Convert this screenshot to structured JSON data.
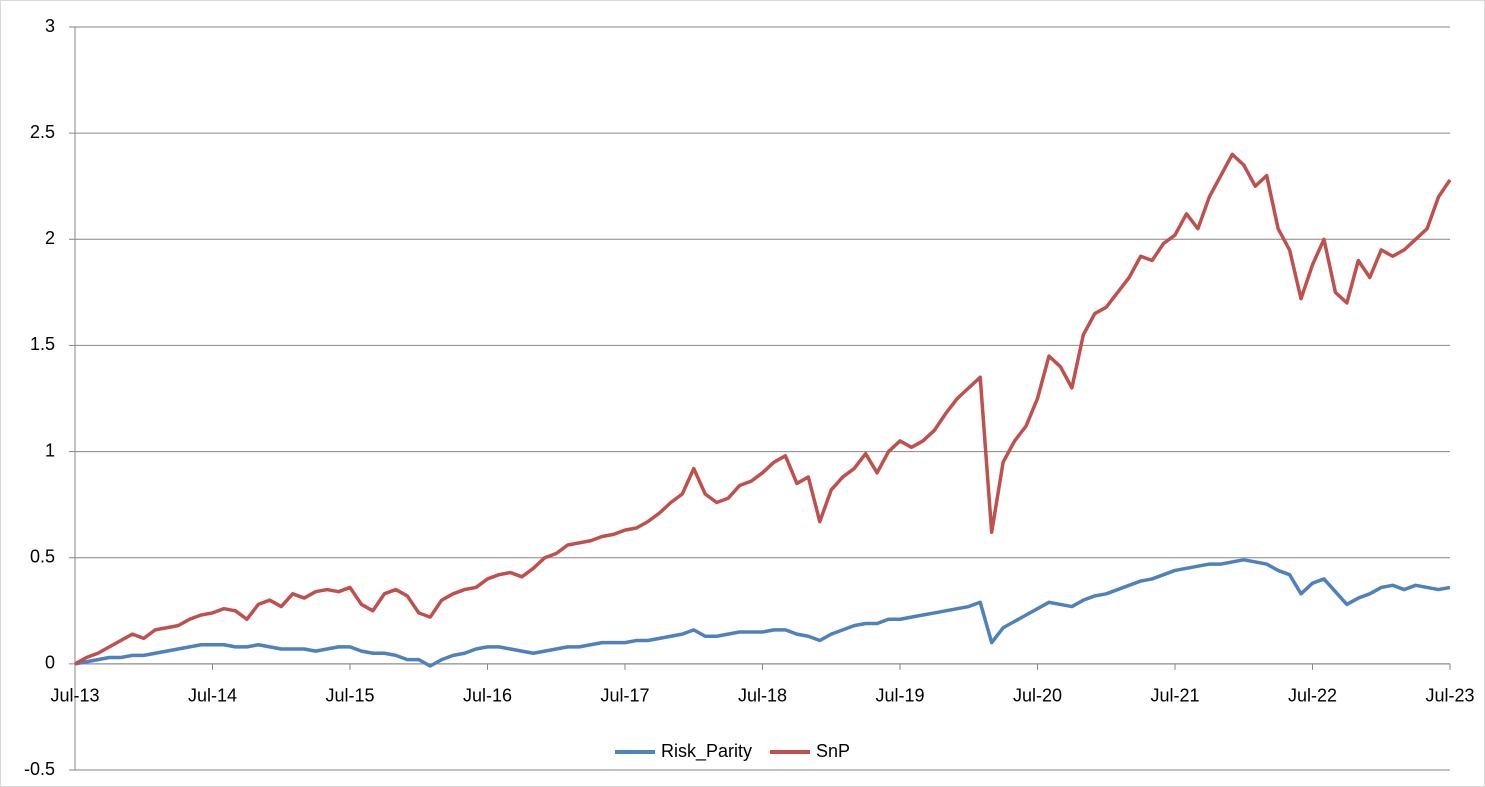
{
  "chart_data": {
    "type": "line",
    "categories": [
      "Jul-13",
      null,
      null,
      null,
      null,
      null,
      null,
      null,
      null,
      null,
      null,
      null,
      "Jul-14",
      null,
      null,
      null,
      null,
      null,
      null,
      null,
      null,
      null,
      null,
      null,
      "Jul-15",
      null,
      null,
      null,
      null,
      null,
      null,
      null,
      null,
      null,
      null,
      null,
      "Jul-16",
      null,
      null,
      null,
      null,
      null,
      null,
      null,
      null,
      null,
      null,
      null,
      "Jul-17",
      null,
      null,
      null,
      null,
      null,
      null,
      null,
      null,
      null,
      null,
      null,
      "Jul-18",
      null,
      null,
      null,
      null,
      null,
      null,
      null,
      null,
      null,
      null,
      null,
      "Jul-19",
      null,
      null,
      null,
      null,
      null,
      null,
      null,
      null,
      null,
      null,
      null,
      "Jul-20",
      null,
      null,
      null,
      null,
      null,
      null,
      null,
      null,
      null,
      null,
      null,
      "Jul-21",
      null,
      null,
      null,
      null,
      null,
      null,
      null,
      null,
      null,
      null,
      null,
      "Jul-22",
      null,
      null,
      null,
      null,
      null,
      null,
      null,
      null,
      null,
      null,
      null,
      "Jul-23"
    ],
    "series": [
      {
        "name": "Risk_Parity",
        "color": "#4f81bd",
        "values": [
          0,
          0.01,
          0.02,
          0.03,
          0.03,
          0.04,
          0.04,
          0.05,
          0.06,
          0.07,
          0.08,
          0.09,
          0.09,
          0.09,
          0.08,
          0.08,
          0.09,
          0.08,
          0.07,
          0.07,
          0.07,
          0.06,
          0.07,
          0.08,
          0.08,
          0.06,
          0.05,
          0.05,
          0.04,
          0.02,
          0.02,
          -0.01,
          0.02,
          0.04,
          0.05,
          0.07,
          0.08,
          0.08,
          0.07,
          0.06,
          0.05,
          0.06,
          0.07,
          0.08,
          0.08,
          0.09,
          0.1,
          0.1,
          0.1,
          0.11,
          0.11,
          0.12,
          0.13,
          0.14,
          0.16,
          0.13,
          0.13,
          0.14,
          0.15,
          0.15,
          0.15,
          0.16,
          0.16,
          0.14,
          0.13,
          0.11,
          0.14,
          0.16,
          0.18,
          0.19,
          0.19,
          0.21,
          0.21,
          0.22,
          0.23,
          0.24,
          0.25,
          0.26,
          0.27,
          0.29,
          0.1,
          0.17,
          0.2,
          0.23,
          0.26,
          0.29,
          0.28,
          0.27,
          0.3,
          0.32,
          0.33,
          0.35,
          0.37,
          0.39,
          0.4,
          0.42,
          0.44,
          0.45,
          0.46,
          0.47,
          0.47,
          0.48,
          0.49,
          0.48,
          0.47,
          0.44,
          0.42,
          0.33,
          0.38,
          0.4,
          0.34,
          0.28,
          0.31,
          0.33,
          0.36,
          0.37,
          0.35,
          0.37,
          0.36,
          0.35,
          0.36
        ]
      },
      {
        "name": "SnP",
        "color": "#c0504d",
        "values": [
          0,
          0.03,
          0.05,
          0.08,
          0.11,
          0.14,
          0.12,
          0.16,
          0.17,
          0.18,
          0.21,
          0.23,
          0.24,
          0.26,
          0.25,
          0.21,
          0.28,
          0.3,
          0.27,
          0.33,
          0.31,
          0.34,
          0.35,
          0.34,
          0.36,
          0.28,
          0.25,
          0.33,
          0.35,
          0.32,
          0.24,
          0.22,
          0.3,
          0.33,
          0.35,
          0.36,
          0.4,
          0.42,
          0.43,
          0.41,
          0.45,
          0.5,
          0.52,
          0.56,
          0.57,
          0.58,
          0.6,
          0.61,
          0.63,
          0.64,
          0.67,
          0.71,
          0.76,
          0.8,
          0.92,
          0.8,
          0.76,
          0.78,
          0.84,
          0.86,
          0.9,
          0.95,
          0.98,
          0.85,
          0.88,
          0.67,
          0.82,
          0.88,
          0.92,
          0.99,
          0.9,
          1.0,
          1.05,
          1.02,
          1.05,
          1.1,
          1.18,
          1.25,
          1.3,
          1.35,
          0.62,
          0.95,
          1.05,
          1.12,
          1.25,
          1.45,
          1.4,
          1.3,
          1.55,
          1.65,
          1.68,
          1.75,
          1.82,
          1.92,
          1.9,
          1.98,
          2.02,
          2.12,
          2.05,
          2.2,
          2.3,
          2.4,
          2.35,
          2.25,
          2.3,
          2.05,
          1.95,
          1.72,
          1.88,
          2.0,
          1.75,
          1.7,
          1.9,
          1.82,
          1.95,
          1.92,
          1.95,
          2.0,
          2.05,
          2.2,
          2.28
        ]
      }
    ],
    "ylim": [
      -0.5,
      3
    ],
    "yticks": [
      -0.5,
      0,
      0.5,
      1,
      1.5,
      2,
      2.5,
      3
    ],
    "grid": true,
    "legend": "bottom"
  }
}
